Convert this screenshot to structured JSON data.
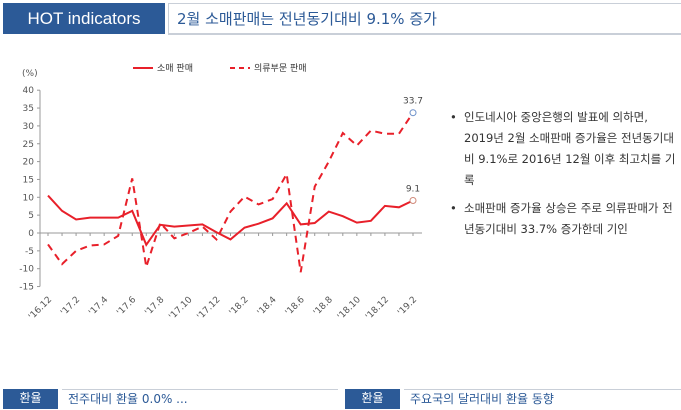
{
  "header": {
    "badge": "HOT indicators",
    "title": "2월 소매판매는 전년동기대비 9.1% 증가"
  },
  "bullets": [
    "인도네시아 중앙은행의 발표에 의하면, 2019년 2월 소매판매 증가율은 전년동기대비 9.1%로 2016년 12월 이후 최고치를 기록",
    "소매판매 증가율 상승은 주로 의류판매가 전년동기대비 33.7% 증가한데 기인"
  ],
  "bottom": [
    {
      "badge": "환율",
      "title": "전주대비 환율 0.0% ..."
    },
    {
      "badge": "환율",
      "title": "주요국의 달러대비 환율 동향"
    }
  ],
  "chart_data": {
    "type": "line",
    "ylabel": "(%)",
    "ylim": [
      -15,
      40
    ],
    "yticks": [
      -15,
      -10,
      -5,
      0,
      5,
      10,
      15,
      20,
      25,
      30,
      35,
      40
    ],
    "x": [
      "'16.12",
      "'17.1",
      "'17.2",
      "'17.3",
      "'17.4",
      "'17.5",
      "'17.6",
      "'17.7",
      "'17.8",
      "'17.9",
      "'17.10",
      "'17.11",
      "'17.12",
      "'18.1",
      "'18.2",
      "'18.3",
      "'18.4",
      "'18.5",
      "'18.6",
      "'18.7",
      "'18.8",
      "'18.9",
      "'18.10",
      "'18.11",
      "'18.12",
      "'19.1",
      "'19.2"
    ],
    "tick_labels": [
      "'16.12",
      "'17.2",
      "'17.4",
      "'17.6",
      "'17.8",
      "'17.10",
      "'17.12",
      "'18.2",
      "'18.4",
      "'18.6",
      "'18.8",
      "'18.10",
      "'18.12",
      "'19.2"
    ],
    "legend": "top-center",
    "series": [
      {
        "name": "소매 판매",
        "style": "solid",
        "color": "#e8202a",
        "values": [
          10.5,
          6.2,
          3.8,
          4.3,
          4.3,
          4.3,
          6.2,
          -3.3,
          2.3,
          1.8,
          2.1,
          2.4,
          0.2,
          -1.8,
          1.5,
          2.6,
          4.1,
          8.3,
          2.4,
          2.8,
          6.0,
          4.7,
          2.9,
          3.4,
          7.6,
          7.2,
          9.1
        ],
        "end_label": "9.1"
      },
      {
        "name": "의류부문 판매",
        "style": "dashed",
        "color": "#e8202a",
        "values": [
          -3.2,
          -8.7,
          -5,
          -3.5,
          -3.2,
          -0.8,
          15.3,
          -9.5,
          2.8,
          -1.5,
          0,
          1.8,
          -1.8,
          6,
          10.2,
          8,
          9.5,
          16.5,
          -11,
          13,
          20,
          28,
          24.5,
          28.7,
          27.8,
          27.8,
          33.7
        ],
        "end_label": "33.7"
      }
    ]
  }
}
